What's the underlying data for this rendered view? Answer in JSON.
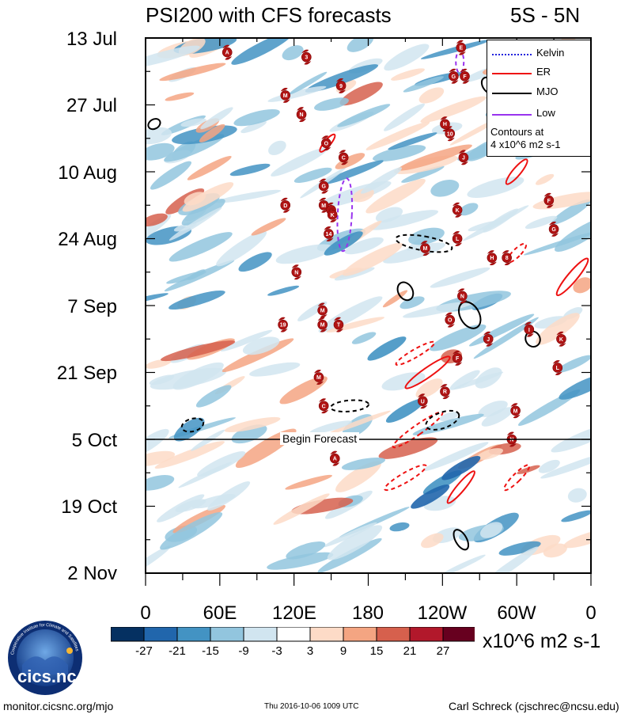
{
  "header": {
    "title": "PSI200 with CFS forecasts",
    "region": "5S - 5N"
  },
  "chart_data": {
    "type": "heatmap",
    "title": "PSI200 with CFS forecasts",
    "region": "5S - 5N",
    "x_axis": {
      "ticks": [
        "0",
        "60E",
        "120E",
        "180",
        "120W",
        "60W",
        "0"
      ],
      "range_deg": [
        0,
        360
      ]
    },
    "y_axis": {
      "ticks": [
        "13 Jul",
        "27 Jul",
        "10 Aug",
        "24 Aug",
        "7 Sep",
        "21 Sep",
        "5 Oct",
        "19 Oct",
        "2 Nov"
      ],
      "range_days": [
        0,
        112
      ]
    },
    "forecast_line": {
      "label": "Begin Forecast",
      "day": 84
    },
    "colorbar": {
      "labels": [
        "-27",
        "-21",
        "-15",
        "-9",
        "-3",
        "3",
        "9",
        "15",
        "21",
        "27"
      ],
      "colors": [
        "#053061",
        "#2166ac",
        "#4393c3",
        "#92c5de",
        "#d1e5f0",
        "#ffffff",
        "#fddbc7",
        "#f4a582",
        "#d6604d",
        "#b2182b",
        "#67001f"
      ],
      "units": "x10^6 m2 s-1"
    },
    "legend": {
      "entries": [
        {
          "name": "Kelvin",
          "color": "#2222dd",
          "style": "dotted"
        },
        {
          "name": "ER",
          "color": "#ee1111",
          "style": "solid"
        },
        {
          "name": "MJO",
          "color": "#000000",
          "style": "solid"
        },
        {
          "name": "Low",
          "color": "#9933ee",
          "style": "solid"
        }
      ],
      "contour_note_1": "Contours at",
      "contour_note_2": "4 x10^6 m2 s-1"
    },
    "storm_symbols": [
      {
        "label": "A",
        "lon": 66,
        "day": 3
      },
      {
        "label": "3",
        "lon": 130,
        "day": 4
      },
      {
        "label": "E",
        "lon": 255,
        "day": 2
      },
      {
        "label": "G",
        "lon": 249,
        "day": 8
      },
      {
        "label": "F",
        "lon": 258,
        "day": 8
      },
      {
        "label": "9",
        "lon": 158,
        "day": 10
      },
      {
        "label": "M",
        "lon": 113,
        "day": 12
      },
      {
        "label": "N",
        "lon": 126,
        "day": 16
      },
      {
        "label": "H",
        "lon": 242,
        "day": 18
      },
      {
        "label": "10",
        "lon": 246,
        "day": 20
      },
      {
        "label": "O",
        "lon": 146,
        "day": 22
      },
      {
        "label": "C",
        "lon": 160,
        "day": 25
      },
      {
        "label": "J",
        "lon": 257,
        "day": 25
      },
      {
        "label": "G",
        "lon": 144,
        "day": 31
      },
      {
        "label": "D",
        "lon": 113,
        "day": 35
      },
      {
        "label": "M",
        "lon": 144,
        "day": 35
      },
      {
        "label": "I",
        "lon": 150,
        "day": 36
      },
      {
        "label": "K",
        "lon": 151,
        "day": 37
      },
      {
        "label": "F",
        "lon": 326,
        "day": 34
      },
      {
        "label": "K",
        "lon": 252,
        "day": 36
      },
      {
        "label": "G",
        "lon": 330,
        "day": 40
      },
      {
        "label": "14",
        "lon": 148,
        "day": 41
      },
      {
        "label": "L",
        "lon": 252,
        "day": 42
      },
      {
        "label": "M",
        "lon": 226,
        "day": 44
      },
      {
        "label": "H",
        "lon": 280,
        "day": 46
      },
      {
        "label": "8",
        "lon": 292,
        "day": 46
      },
      {
        "label": "N",
        "lon": 122,
        "day": 49
      },
      {
        "label": "N",
        "lon": 256,
        "day": 54
      },
      {
        "label": "M",
        "lon": 143,
        "day": 57
      },
      {
        "label": "19",
        "lon": 111,
        "day": 60
      },
      {
        "label": "M",
        "lon": 143,
        "day": 60
      },
      {
        "label": "T",
        "lon": 156,
        "day": 60
      },
      {
        "label": "O",
        "lon": 246,
        "day": 59
      },
      {
        "label": "I",
        "lon": 310,
        "day": 61
      },
      {
        "label": "J",
        "lon": 277,
        "day": 63
      },
      {
        "label": "K",
        "lon": 336,
        "day": 63
      },
      {
        "label": "F",
        "lon": 252,
        "day": 67
      },
      {
        "label": "L",
        "lon": 333,
        "day": 69
      },
      {
        "label": "M",
        "lon": 140,
        "day": 71
      },
      {
        "label": "R",
        "lon": 242,
        "day": 74
      },
      {
        "label": "U",
        "lon": 224,
        "day": 76
      },
      {
        "label": "C",
        "lon": 144,
        "day": 77
      },
      {
        "label": "M",
        "lon": 299,
        "day": 78
      },
      {
        "label": "N",
        "lon": 296,
        "day": 84
      },
      {
        "label": "A",
        "lon": 153,
        "day": 88
      }
    ]
  },
  "footer": {
    "website": "monitor.cicsnc.org/mjo",
    "timestamp": "Thu 2016-10-06 1009 UTC",
    "author": "Carl Schreck (cjschrec@ncsu.edu)",
    "logo_label": "cics.nc",
    "logo_ring_text": "Cooperative Institute for Climate and Satellites"
  }
}
